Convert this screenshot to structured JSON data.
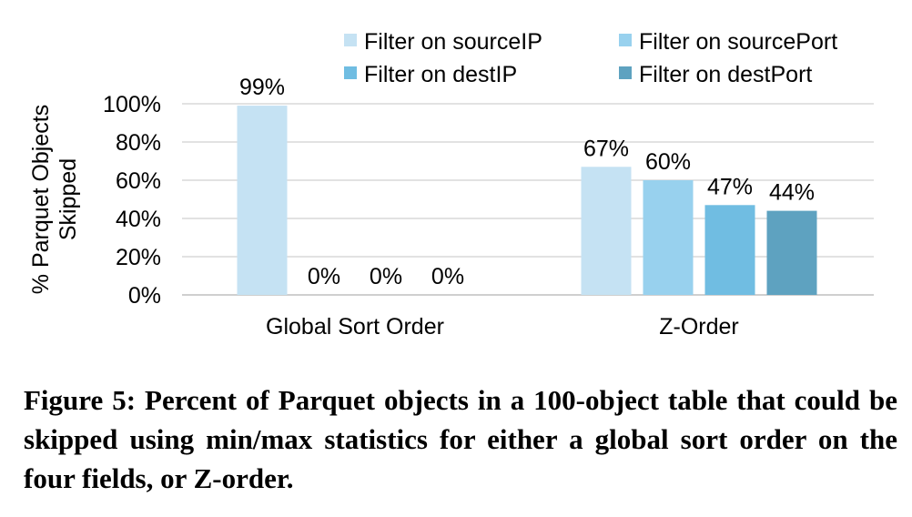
{
  "chart_data": {
    "type": "bar",
    "categories": [
      "Global Sort Order",
      "Z-Order"
    ],
    "series": [
      {
        "name": "Filter on sourceIP",
        "values": [
          99,
          67
        ],
        "color": "#c5e2f3"
      },
      {
        "name": "Filter on sourcePort",
        "values": [
          0,
          60
        ],
        "color": "#98d1ee"
      },
      {
        "name": "Filter on destIP",
        "values": [
          0,
          47
        ],
        "color": "#70bde2"
      },
      {
        "name": "Filter on destPort",
        "values": [
          0,
          44
        ],
        "color": "#5ea2c0"
      }
    ],
    "data_labels": [
      [
        "99%",
        "0%",
        "0%",
        "0%"
      ],
      [
        "67%",
        "60%",
        "47%",
        "44%"
      ]
    ],
    "ylabel_lines": [
      "% Parquet Objects",
      "Skipped"
    ],
    "yticks": [
      "0%",
      "20%",
      "40%",
      "60%",
      "80%",
      "100%"
    ],
    "ytick_values": [
      0,
      20,
      40,
      60,
      80,
      100
    ],
    "ylim": [
      0,
      100
    ],
    "grid": true,
    "legend_position": "top-right"
  },
  "caption": "Figure 5: Percent of Parquet objects in a 100-object table that could be skipped using min/max statistics for either a global sort order on the four fields, or Z-order."
}
